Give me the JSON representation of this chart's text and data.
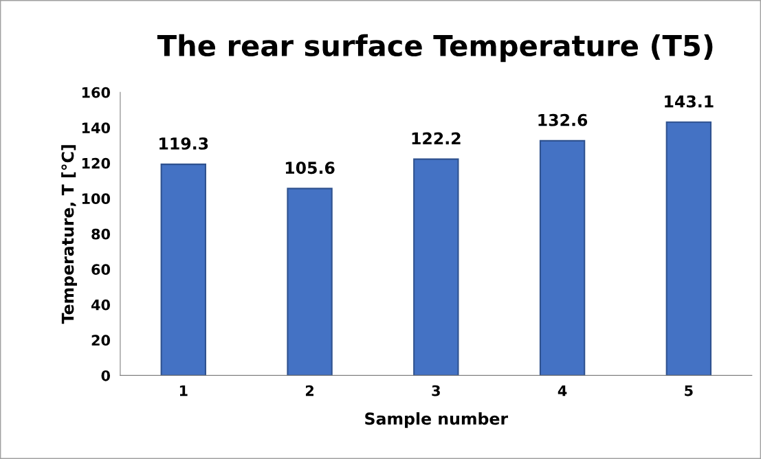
{
  "chart_data": {
    "type": "bar",
    "title": "The rear surface Temperature (T5)",
    "xlabel": "Sample number",
    "ylabel": "Temperature, T [°C]",
    "categories": [
      "1",
      "2",
      "3",
      "4",
      "5"
    ],
    "values": [
      119.3,
      105.6,
      122.2,
      132.6,
      143.1
    ],
    "color": "#4472c4",
    "ylim": [
      0,
      160
    ],
    "yticks": [
      0,
      20,
      40,
      60,
      80,
      100,
      120,
      140,
      160
    ],
    "grid": false,
    "data_labels": true
  }
}
